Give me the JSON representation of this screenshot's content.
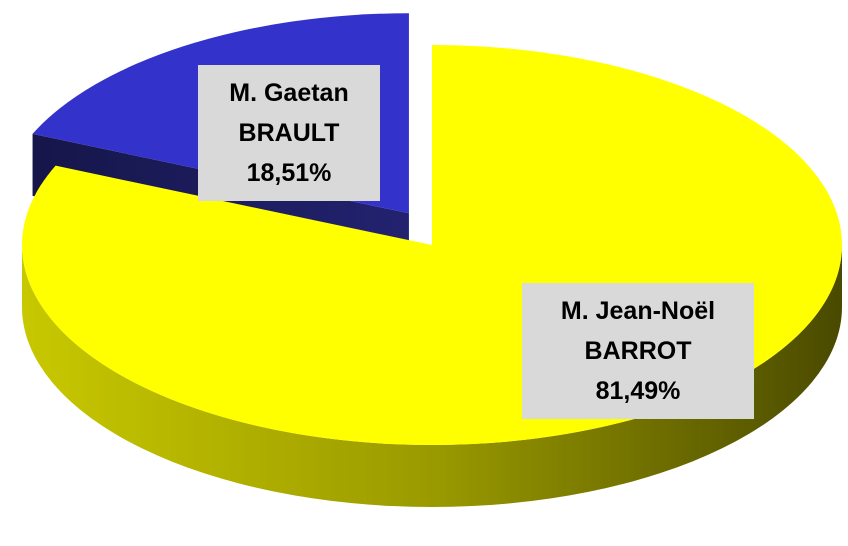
{
  "chart_data": {
    "type": "pie3d",
    "categories": [
      "M. Jean-Noël BARROT",
      "M. Gaetan BRAULT"
    ],
    "values": [
      81.49,
      18.51
    ],
    "value_labels": [
      "81,49%",
      "18,51%"
    ],
    "colors": [
      "#ffff00",
      "#3333cc"
    ],
    "exploded": [
      false,
      true
    ]
  }
}
